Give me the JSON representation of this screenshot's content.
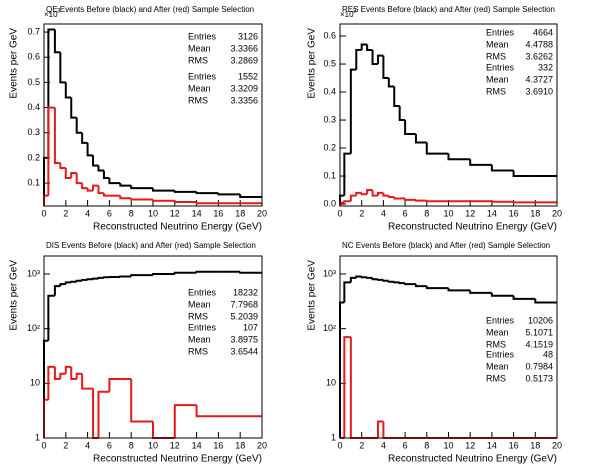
{
  "chart_data": [
    {
      "type": "histogram",
      "title": "QE Events Before (black) and After (red) Sample Selection",
      "y_multiplier": "×10",
      "y_multiplier_exponent": "3",
      "xlabel": "Reconstructed Neutrino Energy (GeV)",
      "ylabel": "Events per GeV",
      "xlim": [
        0,
        20
      ],
      "xticks": [
        0,
        2,
        4,
        6,
        8,
        10,
        12,
        14,
        16,
        18,
        20
      ],
      "ylim": [
        0.009,
        0.732
      ],
      "yticks": [
        0.1,
        0.2,
        0.3,
        0.4,
        0.5,
        0.6,
        0.7
      ],
      "log_y": false,
      "bins": [
        0,
        0.4,
        1,
        1.5,
        2,
        2.5,
        3,
        3.5,
        4,
        4.5,
        5,
        5.5,
        6,
        7,
        8,
        10,
        12,
        14,
        16,
        18,
        20
      ],
      "stats_labels": [
        "Entries",
        "Mean",
        "RMS"
      ],
      "series": [
        {
          "color": "#000000",
          "values": [
            0.2,
            0.71,
            0.62,
            0.5,
            0.44,
            0.36,
            0.3,
            0.26,
            0.21,
            0.17,
            0.15,
            0.12,
            0.1,
            0.09,
            0.08,
            0.07,
            0.065,
            0.06,
            0.055,
            0.045
          ],
          "stats": [
            "3126",
            "3.3366",
            "3.2869"
          ]
        },
        {
          "color": "#e41a1c",
          "values": [
            0.05,
            0.4,
            0.18,
            0.16,
            0.12,
            0.14,
            0.1,
            0.08,
            0.07,
            0.09,
            0.06,
            0.05,
            0.05,
            0.04,
            0.035,
            0.03,
            0.025,
            0.02,
            0.02,
            0.02
          ],
          "stats": [
            "1552",
            "3.3209",
            "3.3356"
          ]
        }
      ]
    },
    {
      "type": "histogram",
      "title": "RES Events Before (black) and After (red) Sample Selection",
      "y_multiplier": "×10",
      "y_multiplier_exponent": "3",
      "xlabel": "Reconstructed Neutrino Energy (GeV)",
      "ylabel": "Events per GeV",
      "xlim": [
        0,
        20
      ],
      "xticks": [
        0,
        2,
        4,
        6,
        8,
        10,
        12,
        14,
        16,
        18,
        20
      ],
      "ylim": [
        -0.007,
        0.643
      ],
      "yticks": [
        {
          "value": 0,
          "label": "0.0"
        },
        0.1,
        0.2,
        0.3,
        0.4,
        0.5,
        0.6
      ],
      "log_y": false,
      "bins": [
        0,
        0.4,
        1,
        1.5,
        2,
        2.5,
        3,
        3.5,
        4,
        4.5,
        5,
        5.5,
        6,
        7,
        8,
        10,
        12,
        14,
        16,
        18,
        20
      ],
      "stats_labels": [
        "Entries",
        "Mean",
        "RMS"
      ],
      "series": [
        {
          "color": "#000000",
          "values": [
            0.03,
            0.18,
            0.48,
            0.55,
            0.57,
            0.55,
            0.5,
            0.53,
            0.45,
            0.42,
            0.35,
            0.3,
            0.25,
            0.22,
            0.18,
            0.16,
            0.14,
            0.12,
            0.1,
            0.1
          ],
          "stats": [
            "4664",
            "4.4788",
            "3.6262"
          ]
        },
        {
          "color": "#e41a1c",
          "values": [
            0.005,
            0.01,
            0.03,
            0.04,
            0.035,
            0.05,
            0.03,
            0.04,
            0.03,
            0.025,
            0.02,
            0.02,
            0.015,
            0.012,
            0.01,
            0.01,
            0.01,
            0.008,
            0.006,
            0.006
          ],
          "stats": [
            "332",
            "4.3727",
            "3.6910"
          ]
        }
      ]
    },
    {
      "type": "histogram",
      "title": "DIS Events Before (black) and After (red) Sample Selection",
      "xlabel": "Reconstructed Neutrino Energy (GeV)",
      "ylabel": "Events per GeV",
      "xlim": [
        0,
        20
      ],
      "xticks": [
        0,
        2,
        4,
        6,
        8,
        10,
        12,
        14,
        16,
        18,
        20
      ],
      "ylim": [
        1,
        2130
      ],
      "yticks": [
        1,
        10,
        {
          "value": 100,
          "label": "10²"
        },
        {
          "value": 1000,
          "label": "10³"
        }
      ],
      "log_y": true,
      "bins": [
        0,
        0.4,
        1,
        1.5,
        2,
        2.5,
        3,
        3.5,
        4,
        4.5,
        5,
        5.5,
        6,
        7,
        8,
        10,
        12,
        14,
        16,
        18,
        20
      ],
      "stats_labels": [
        "Entries",
        "Mean",
        "RMS"
      ],
      "series": [
        {
          "color": "#000000",
          "values": [
            60,
            400,
            600,
            650,
            700,
            720,
            750,
            780,
            800,
            820,
            850,
            870,
            880,
            900,
            950,
            1000,
            1050,
            1100,
            1100,
            1050
          ],
          "stats": [
            "18232",
            "7.7968",
            "5.2039"
          ]
        },
        {
          "color": "#e41a1c",
          "values": [
            5,
            20,
            12,
            15,
            20,
            12,
            15,
            8,
            8,
            1,
            7,
            7,
            12,
            12,
            2,
            1,
            4,
            2.5,
            2.5,
            2.5
          ],
          "stats": [
            "107",
            "3.8975",
            "3.6544"
          ]
        }
      ]
    },
    {
      "type": "histogram",
      "title": "NC Events Before (black) and After (red) Sample Selection",
      "xlabel": "Reconstructed Neutrino Energy (GeV)",
      "ylabel": "Events per GeV",
      "xlim": [
        0,
        20
      ],
      "xticks": [
        0,
        2,
        4,
        6,
        8,
        10,
        12,
        14,
        16,
        18,
        20
      ],
      "ylim": [
        1,
        2130
      ],
      "yticks": [
        1,
        10,
        {
          "value": 100,
          "label": "10²"
        },
        {
          "value": 1000,
          "label": "10³"
        }
      ],
      "log_y": true,
      "bins": [
        0,
        0.4,
        1,
        1.5,
        2,
        2.5,
        3,
        3.5,
        4,
        4.5,
        5,
        5.5,
        6,
        7,
        8,
        10,
        12,
        14,
        16,
        18,
        20
      ],
      "stats_labels": [
        "Entries",
        "Mean",
        "RMS"
      ],
      "series": [
        {
          "color": "#000000",
          "values": [
            300,
            700,
            850,
            900,
            870,
            850,
            800,
            780,
            750,
            720,
            700,
            680,
            650,
            600,
            550,
            500,
            450,
            400,
            350,
            300
          ],
          "stats": [
            "10206",
            "5.1071",
            "4.1519"
          ]
        },
        {
          "color": "#e41a1c",
          "values": [
            1,
            70,
            1,
            1,
            1,
            1,
            1,
            2,
            1,
            1,
            1,
            1,
            1,
            1,
            1,
            1,
            1,
            1,
            1,
            1
          ],
          "stats": [
            "48",
            "0.7984",
            "0.5173"
          ]
        }
      ]
    }
  ]
}
